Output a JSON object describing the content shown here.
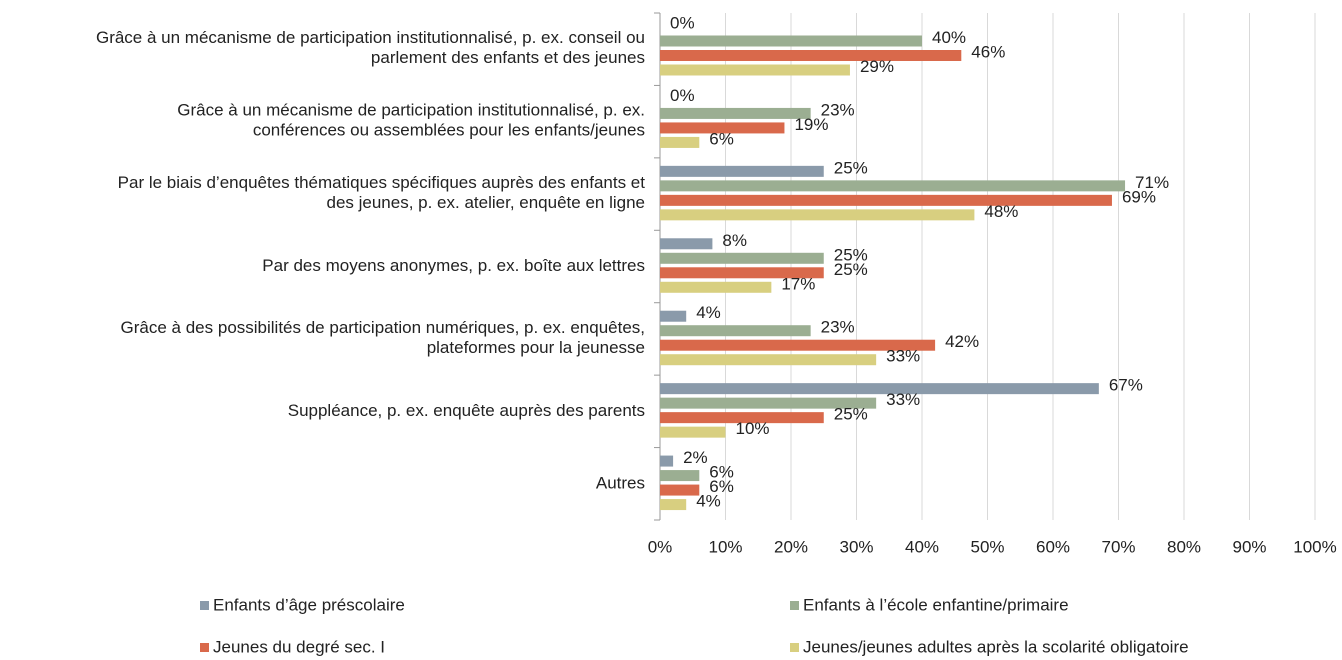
{
  "chart_data": {
    "type": "bar",
    "orientation": "horizontal",
    "categories": [
      "Grâce à un mécanisme de participation institutionnalisé, p. ex. conseil ou\nparlement des enfants et des jeunes",
      "Grâce à un mécanisme de participation institutionnalisé, p. ex.\nconférences ou assemblées pour les enfants/jeunes",
      "Par le biais d’enquêtes thématiques spécifiques auprès des enfants et\ndes jeunes, p. ex. atelier, enquête en ligne",
      "Par des moyens anonymes, p. ex. boîte aux lettres",
      "Grâce à des possibilités de participation numériques, p. ex. enquêtes,\nplateformes pour la jeunesse",
      "Suppléance, p. ex. enquête auprès des parents",
      "Autres"
    ],
    "series": [
      {
        "name": "Enfants d’âge préscolaire",
        "color": "#8a9aaa",
        "values": [
          0,
          0,
          25,
          8,
          4,
          67,
          2
        ],
        "value_labels": [
          "0%",
          "0%",
          "25%",
          "8%",
          "4%",
          "67%",
          "2%"
        ]
      },
      {
        "name": "Enfants à l’école enfantine/primaire",
        "color": "#9bae92",
        "values": [
          40,
          23,
          71,
          25,
          23,
          33,
          6
        ],
        "value_labels": [
          "40%",
          "23%",
          "71%",
          "25%",
          "23%",
          "33%",
          "6%"
        ]
      },
      {
        "name": "Jeunes du degré sec. I",
        "color": "#d9694b",
        "values": [
          46,
          19,
          69,
          25,
          42,
          25,
          6
        ],
        "value_labels": [
          "46%",
          "19%",
          "69%",
          "25%",
          "42%",
          "25%",
          "6%"
        ]
      },
      {
        "name": "Jeunes/jeunes adultes après la scolarité obligatoire",
        "color": "#d8cf80",
        "values": [
          29,
          6,
          48,
          17,
          33,
          10,
          4
        ],
        "value_labels": [
          "29%",
          "6%",
          "48%",
          "17%",
          "33%",
          "10%",
          "4%"
        ]
      }
    ],
    "xlim": [
      0,
      100
    ],
    "xticks": [
      {
        "value": 0,
        "label": "0%"
      },
      {
        "value": 10,
        "label": "10%"
      },
      {
        "value": 20,
        "label": "20%"
      },
      {
        "value": 30,
        "label": "30%"
      },
      {
        "value": 40,
        "label": "40%"
      },
      {
        "value": 50,
        "label": "50%"
      },
      {
        "value": 60,
        "label": "60%"
      },
      {
        "value": 70,
        "label": "70%"
      },
      {
        "value": 80,
        "label": "80%"
      },
      {
        "value": 90,
        "label": "90%"
      },
      {
        "value": 100,
        "label": "100%"
      }
    ],
    "grid": true,
    "legend": "bottom"
  }
}
